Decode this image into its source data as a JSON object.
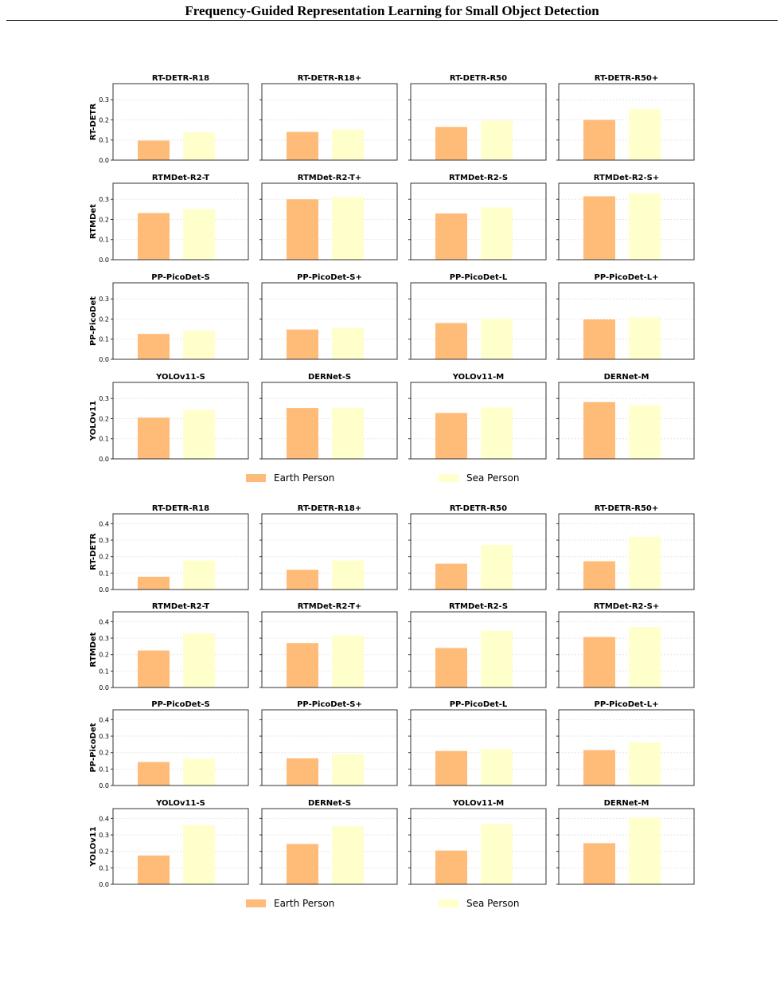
{
  "header": {
    "title": "Frequency-Guided Representation Learning for Small Object Detection"
  },
  "colors": {
    "earth": "#FFBB78",
    "sea": "#FFFFCC",
    "axis": "#333333",
    "grid": "#e6e6e6"
  },
  "legend": {
    "items": [
      "Earth Person",
      "Sea Person"
    ]
  },
  "chart_data": [
    {
      "type": "bar",
      "group": "top",
      "series_names": [
        "Earth Person",
        "Sea Person"
      ],
      "ylim": [
        0,
        0.38
      ],
      "yticks": [
        "0.0",
        "0.1",
        "0.2",
        "0.3"
      ],
      "grid": true,
      "legend_position": "bottom-center",
      "rows": [
        {
          "ylabel": "RT-DETR",
          "panels": [
            {
              "title": "RT-DETR-R18",
              "values": [
                0.097,
                0.138
              ]
            },
            {
              "title": "RT-DETR-R18+",
              "values": [
                0.14,
                0.152
              ]
            },
            {
              "title": "RT-DETR-R50",
              "values": [
                0.165,
                0.196
              ]
            },
            {
              "title": "RT-DETR-R50+",
              "values": [
                0.2,
                0.253
              ]
            }
          ]
        },
        {
          "ylabel": "RTMDet",
          "panels": [
            {
              "title": "RTMDet-R2-T",
              "values": [
                0.232,
                0.252
              ]
            },
            {
              "title": "RTMDet-R2-T+",
              "values": [
                0.3,
                0.312
              ]
            },
            {
              "title": "RTMDet-R2-S",
              "values": [
                0.23,
                0.26
              ]
            },
            {
              "title": "RTMDet-R2-S+",
              "values": [
                0.315,
                0.33
              ]
            }
          ]
        },
        {
          "ylabel": "PP-PicoDet",
          "panels": [
            {
              "title": "PP-PicoDet-S",
              "values": [
                0.126,
                0.142
              ]
            },
            {
              "title": "PP-PicoDet-S+",
              "values": [
                0.148,
                0.155
              ]
            },
            {
              "title": "PP-PicoDet-L",
              "values": [
                0.18,
                0.202
              ]
            },
            {
              "title": "PP-PicoDet-L+",
              "values": [
                0.198,
                0.208
              ]
            }
          ]
        },
        {
          "ylabel": "YOLOv11",
          "panels": [
            {
              "title": "YOLOv11-S",
              "values": [
                0.205,
                0.243
              ]
            },
            {
              "title": "DERNet-S",
              "values": [
                0.253,
                0.253
              ]
            },
            {
              "title": "YOLOv11-M",
              "values": [
                0.228,
                0.255
              ]
            },
            {
              "title": "DERNet-M",
              "values": [
                0.282,
                0.268
              ]
            }
          ]
        }
      ]
    },
    {
      "type": "bar",
      "group": "bottom",
      "series_names": [
        "Earth Person",
        "Sea Person"
      ],
      "ylim": [
        0,
        0.46
      ],
      "yticks": [
        "0.0",
        "0.1",
        "0.2",
        "0.3",
        "0.4"
      ],
      "grid": true,
      "legend_position": "bottom-center",
      "rows": [
        {
          "ylabel": "RT-DETR",
          "panels": [
            {
              "title": "RT-DETR-R18",
              "values": [
                0.078,
                0.177
              ]
            },
            {
              "title": "RT-DETR-R18+",
              "values": [
                0.12,
                0.177
              ]
            },
            {
              "title": "RT-DETR-R50",
              "values": [
                0.157,
                0.272
              ]
            },
            {
              "title": "RT-DETR-R50+",
              "values": [
                0.172,
                0.32
              ]
            }
          ]
        },
        {
          "ylabel": "RTMDet",
          "panels": [
            {
              "title": "RTMDet-R2-T",
              "values": [
                0.225,
                0.33
              ]
            },
            {
              "title": "RTMDet-R2-T+",
              "values": [
                0.27,
                0.318
              ]
            },
            {
              "title": "RTMDet-R2-S",
              "values": [
                0.24,
                0.345
              ]
            },
            {
              "title": "RTMDet-R2-S+",
              "values": [
                0.307,
                0.367
              ]
            }
          ]
        },
        {
          "ylabel": "PP-PicoDet",
          "panels": [
            {
              "title": "PP-PicoDet-S",
              "values": [
                0.143,
                0.163
              ]
            },
            {
              "title": "PP-PicoDet-S+",
              "values": [
                0.165,
                0.19
              ]
            },
            {
              "title": "PP-PicoDet-L",
              "values": [
                0.21,
                0.222
              ]
            },
            {
              "title": "PP-PicoDet-L+",
              "values": [
                0.215,
                0.262
              ]
            }
          ]
        },
        {
          "ylabel": "YOLOv11",
          "panels": [
            {
              "title": "YOLOv11-S",
              "values": [
                0.175,
                0.36
              ]
            },
            {
              "title": "DERNet-S",
              "values": [
                0.245,
                0.353
              ]
            },
            {
              "title": "YOLOv11-M",
              "values": [
                0.205,
                0.365
              ]
            },
            {
              "title": "DERNet-M",
              "values": [
                0.25,
                0.405
              ]
            }
          ]
        }
      ]
    }
  ]
}
